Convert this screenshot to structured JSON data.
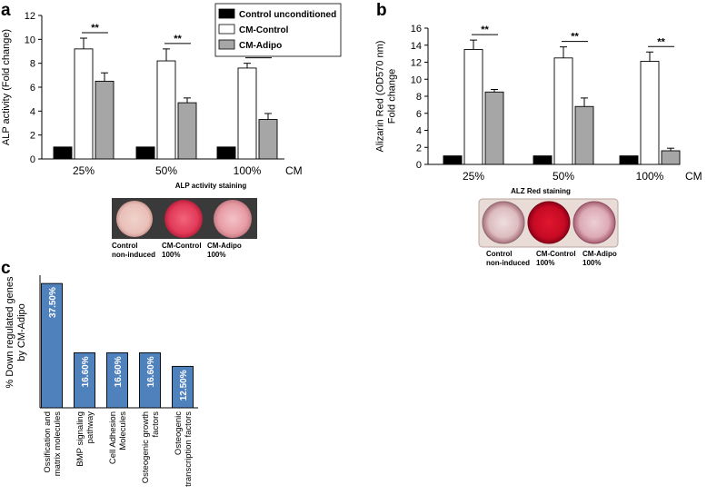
{
  "panels": {
    "a": {
      "letter": "a"
    },
    "b": {
      "letter": "b"
    },
    "c": {
      "letter": "c"
    }
  },
  "legend": {
    "items": [
      "Control unconditioned",
      "CM-Control",
      "CM-Adipo"
    ]
  },
  "colors": {
    "control": "#000000",
    "cm_control": "#ffffff",
    "cm_adipo": "#a6a6a6",
    "panel_c_bar": "#4f81bd"
  },
  "significance_label": "**",
  "axis_suffix_label": "CM",
  "images": {
    "a": {
      "title": "ALP activity staining",
      "captions": [
        [
          "Control",
          "non-induced"
        ],
        [
          "CM-Control",
          "100%"
        ],
        [
          "CM-Adipo",
          "100%"
        ]
      ]
    },
    "b": {
      "title": "ALZ Red staining",
      "captions": [
        [
          "Control",
          "non-induced"
        ],
        [
          "CM-Control",
          "100%"
        ],
        [
          "CM-Adipo",
          "100%"
        ]
      ]
    }
  },
  "chart_data": [
    {
      "panel": "a",
      "type": "bar",
      "categories": [
        "25%",
        "50%",
        "100%"
      ],
      "series": [
        {
          "name": "Control unconditioned",
          "values": [
            1.0,
            1.0,
            1.0
          ],
          "errors": [
            0.05,
            0.05,
            0.05
          ]
        },
        {
          "name": "CM-Control",
          "values": [
            9.2,
            8.2,
            7.6
          ],
          "errors": [
            0.9,
            1.0,
            0.4
          ]
        },
        {
          "name": "CM-Adipo",
          "values": [
            6.5,
            4.7,
            3.3
          ],
          "errors": [
            0.7,
            0.4,
            0.5
          ]
        }
      ],
      "ylabel": "ALP activity (Fold change)",
      "xlabel": "CM",
      "ylim": [
        0,
        12
      ],
      "yticks": [
        0,
        2,
        4,
        6,
        8,
        10,
        12
      ],
      "significance": [
        "**",
        "**",
        "**"
      ]
    },
    {
      "panel": "b",
      "type": "bar",
      "categories": [
        "25%",
        "50%",
        "100%"
      ],
      "series": [
        {
          "name": "Control unconditioned",
          "values": [
            1.0,
            1.0,
            1.0
          ],
          "errors": [
            0.05,
            0.05,
            0.05
          ]
        },
        {
          "name": "CM-Control",
          "values": [
            13.5,
            12.5,
            12.1
          ],
          "errors": [
            1.1,
            1.3,
            1.1
          ]
        },
        {
          "name": "CM-Adipo",
          "values": [
            8.5,
            6.8,
            1.6
          ],
          "errors": [
            0.3,
            1.0,
            0.3
          ]
        }
      ],
      "ylabel": [
        "Alizarin Red (OD570 nm)",
        "Fold change"
      ],
      "xlabel": "CM",
      "ylim": [
        0,
        16
      ],
      "yticks": [
        0,
        2,
        4,
        6,
        8,
        10,
        12,
        14,
        16
      ],
      "significance": [
        "**",
        "**",
        "**"
      ]
    },
    {
      "panel": "c",
      "type": "bar",
      "categories": [
        [
          "Ossification and",
          "matrix molecules"
        ],
        [
          "BMP signaling",
          "pathway"
        ],
        [
          "Cell Adhesion",
          "Molecules"
        ],
        [
          "Osteogenic growth",
          "factors"
        ],
        [
          "Osteogenic",
          "transcription factors"
        ]
      ],
      "values": [
        37.5,
        16.6,
        16.6,
        16.6,
        12.5
      ],
      "data_labels": [
        "37.50%",
        "16.60%",
        "16.60%",
        "16.60%",
        "12.50%"
      ],
      "ylabel": [
        "% Down regulated genes",
        "by CM-Adipo"
      ],
      "ylim": [
        0,
        40
      ]
    }
  ]
}
